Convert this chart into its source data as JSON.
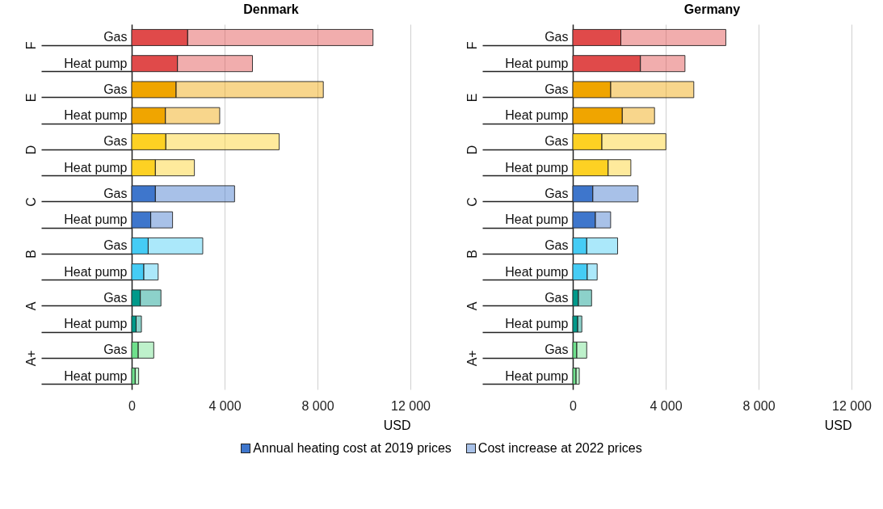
{
  "chart_data": [
    {
      "type": "bar",
      "title": "Denmark",
      "orientation": "horizontal",
      "stacked": true,
      "xlabel": "USD",
      "categories": [
        "Gas",
        "Heat pump",
        "Gas",
        "Heat pump",
        "Gas",
        "Heat pump",
        "Gas",
        "Heat pump",
        "Gas",
        "Heat pump",
        "Gas",
        "Heat pump",
        "Gas",
        "Heat pump"
      ],
      "annotations": [
        "F",
        "E",
        "D",
        "C",
        "B",
        "A",
        "A+"
      ],
      "xlim": [
        0,
        12000
      ],
      "xticks": [
        0,
        {
          "value": 4000,
          "label": "4 000"
        },
        {
          "value": 8000,
          "label": "8 000"
        },
        {
          "value": 12000,
          "label": "12 000"
        }
      ],
      "grid": "x",
      "legend": "bottom",
      "series": [
        {
          "name": "Annual heating cost at 2019 prices",
          "color": "#3e76cc",
          "colors": [
            "#e04a4a",
            "#e04a4a",
            "#f0a500",
            "#f0a500",
            "#fdd123",
            "#fdd123",
            "#3e76cc",
            "#3e76cc",
            "#45ccf5",
            "#45ccf5",
            "#00998a",
            "#00998a",
            "#6ee08c",
            "#6ee08c"
          ],
          "values": [
            2410,
            1970,
            1910,
            1450,
            1470,
            1020,
            1020,
            820,
            710,
            520,
            370,
            190,
            280,
            150
          ]
        },
        {
          "name": "Cost increase at 2022 prices",
          "color": "#3e76cc",
          "colors": [
            "#e04a4a",
            "#e04a4a",
            "#f0a500",
            "#f0a500",
            "#fdd123",
            "#fdd123",
            "#3e76cc",
            "#3e76cc",
            "#45ccf5",
            "#45ccf5",
            "#00998a",
            "#00998a",
            "#6ee08c",
            "#6ee08c"
          ],
          "values": [
            7980,
            3230,
            6340,
            2340,
            4880,
            1680,
            3410,
            940,
            2350,
            620,
            890,
            230,
            670,
            150
          ]
        }
      ]
    },
    {
      "type": "bar",
      "title": "Germany",
      "orientation": "horizontal",
      "stacked": true,
      "xlabel": "USD",
      "categories": [
        "Gas",
        "Heat pump",
        "Gas",
        "Heat pump",
        "Gas",
        "Heat pump",
        "Gas",
        "Heat pump",
        "Gas",
        "Heat pump",
        "Gas",
        "Heat pump",
        "Gas",
        "Heat pump"
      ],
      "annotations": [
        "F",
        "E",
        "D",
        "C",
        "B",
        "A",
        "A+"
      ],
      "xlim": [
        0,
        12000
      ],
      "xticks": [
        0,
        {
          "value": 4000,
          "label": "4 000"
        },
        {
          "value": 8000,
          "label": "8 000"
        },
        {
          "value": 12000,
          "label": "12 000"
        }
      ],
      "grid": "x",
      "series": [
        {
          "colors": [
            "#e04a4a",
            "#e04a4a",
            "#f0a500",
            "#f0a500",
            "#fdd123",
            "#fdd123",
            "#3e76cc",
            "#3e76cc",
            "#45ccf5",
            "#45ccf5",
            "#00998a",
            "#00998a",
            "#6ee08c",
            "#6ee08c"
          ],
          "values": [
            2070,
            2910,
            1630,
            2130,
            1250,
            1520,
            860,
            970,
            600,
            620,
            240,
            210,
            170,
            140
          ]
        },
        {
          "colors": [
            "#e04a4a",
            "#e04a4a",
            "#f0a500",
            "#f0a500",
            "#fdd123",
            "#fdd123",
            "#3e76cc",
            "#3e76cc",
            "#45ccf5",
            "#45ccf5",
            "#00998a",
            "#00998a",
            "#6ee08c",
            "#6ee08c"
          ],
          "values": [
            4520,
            1920,
            3580,
            1390,
            2760,
            980,
            1950,
            660,
            1330,
            430,
            570,
            180,
            430,
            140
          ]
        }
      ]
    }
  ]
}
